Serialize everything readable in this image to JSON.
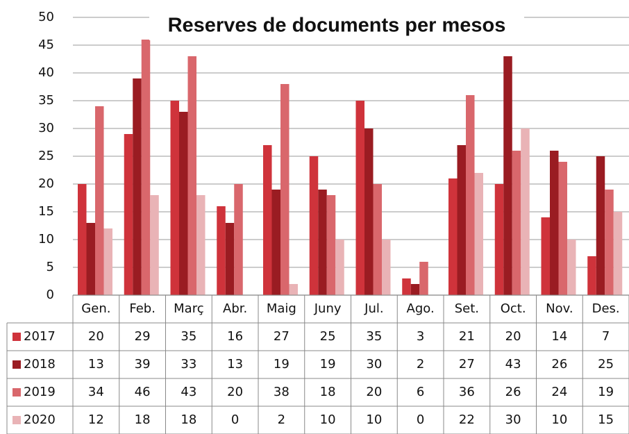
{
  "chart_data": {
    "type": "bar",
    "title": "Reserves de documents per mesos",
    "categories": [
      "Gen.",
      "Feb.",
      "Març",
      "Abr.",
      "Maig",
      "Juny",
      "Jul.",
      "Ago.",
      "Set.",
      "Oct.",
      "Nov.",
      "Des."
    ],
    "series": [
      {
        "name": "2017",
        "color": "#cf333b",
        "values": [
          20,
          29,
          35,
          16,
          27,
          25,
          35,
          3,
          21,
          20,
          14,
          7
        ]
      },
      {
        "name": "2018",
        "color": "#9a1c22",
        "values": [
          13,
          39,
          33,
          13,
          19,
          19,
          30,
          2,
          27,
          43,
          26,
          25
        ]
      },
      {
        "name": "2019",
        "color": "#d9676c",
        "values": [
          34,
          46,
          43,
          20,
          38,
          18,
          20,
          6,
          36,
          26,
          24,
          19
        ]
      },
      {
        "name": "2020",
        "color": "#e9b3b6",
        "values": [
          12,
          18,
          18,
          0,
          2,
          10,
          10,
          0,
          22,
          30,
          10,
          15
        ]
      }
    ],
    "ylim": [
      0,
      50
    ],
    "yticks": [
      0,
      5,
      10,
      15,
      20,
      25,
      30,
      35,
      40,
      45,
      50
    ],
    "grid": true
  }
}
